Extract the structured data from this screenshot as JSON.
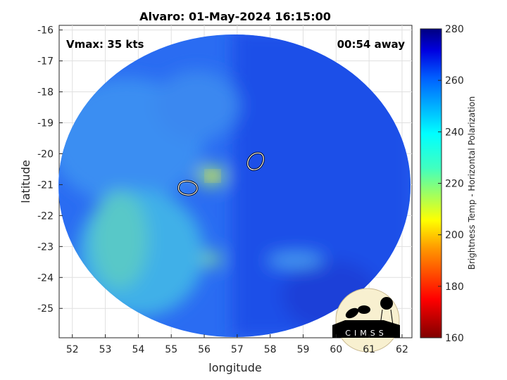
{
  "chart_data": {
    "type": "heatmap",
    "title": "Alvaro: 01-May-2024 16:15:00",
    "xlabel": "longitude",
    "ylabel": "latitude",
    "xlim": [
      51.6,
      62.3
    ],
    "ylim": [
      -25.95,
      -15.85
    ],
    "xticks": [
      "52",
      "53",
      "54",
      "55",
      "56",
      "57",
      "58",
      "59",
      "60",
      "61",
      "62"
    ],
    "yticks": [
      "-16",
      "-17",
      "-18",
      "-19",
      "-20",
      "-21",
      "-22",
      "-23",
      "-24",
      "-25"
    ],
    "grid": true,
    "annotations": {
      "vmax": "Vmax: 35 kts",
      "time_away": "00:54 away"
    },
    "colorbar": {
      "label": "Brightness Temp - Horizontal Polarization",
      "range": [
        160,
        280
      ],
      "ticks": [
        "160",
        "180",
        "200",
        "220",
        "240",
        "260",
        "280"
      ],
      "colormap": "jet"
    },
    "contours": [
      {
        "lon": 57.6,
        "lat": -20.3
      },
      {
        "lon": 55.5,
        "lat": -21.1
      }
    ],
    "logo": "CIMSS"
  }
}
